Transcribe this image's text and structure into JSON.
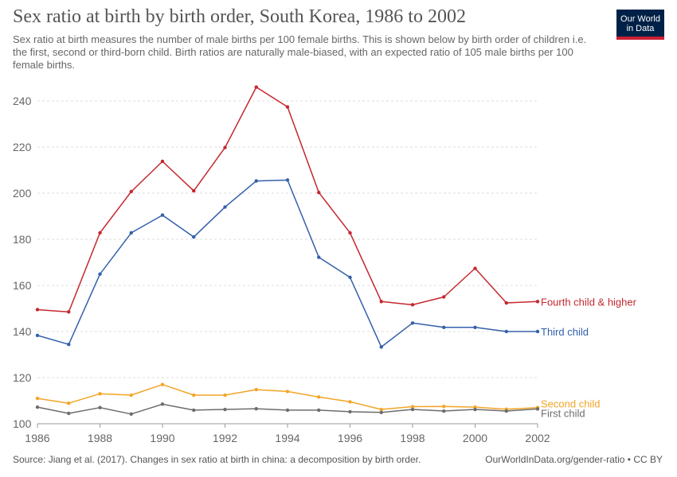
{
  "header": {
    "title": "Sex ratio at birth by birth order, South Korea, 1986 to 2002",
    "subtitle": "Sex ratio at birth measures the number of male births per 100 female births. This is shown below by birth order of children i.e. the first, second or third-born child. Birth ratios are naturally male-biased, with an expected ratio of 105 male births per 100 female births.",
    "logo_line1": "Our World",
    "logo_line2": "in Data"
  },
  "footer": {
    "source": "Source: Jiang et al. (2017). Changes in sex ratio at birth in china: a decomposition by birth order.",
    "credit": "OurWorldInData.org/gender-ratio • CC BY"
  },
  "colors": {
    "brand_bg": "#002147",
    "brand_accent": "#cc1f35",
    "grid": "#dddddd"
  },
  "chart_data": {
    "type": "line",
    "x": [
      1986,
      1987,
      1988,
      1989,
      1990,
      1991,
      1992,
      1993,
      1994,
      1995,
      1996,
      1997,
      1998,
      1999,
      2000,
      2001,
      2002
    ],
    "xticks": [
      1986,
      1988,
      1990,
      1992,
      1994,
      1996,
      1998,
      2000,
      2002
    ],
    "yticks": [
      100,
      120,
      140,
      160,
      180,
      200,
      220,
      240
    ],
    "xlim": [
      1986,
      2002
    ],
    "ylim": [
      100,
      250
    ],
    "grid": "horizontal dashed",
    "legend": "labels at line ends (right)",
    "series": [
      {
        "name": "Fourth child & higher",
        "color": "#c4272e",
        "values": [
          149.5,
          148.5,
          182.8,
          200.7,
          213.8,
          201.0,
          219.8,
          246.0,
          237.4,
          200.3,
          182.8,
          153.0,
          151.6,
          155.0,
          167.4,
          152.4,
          153.0
        ]
      },
      {
        "name": "Third child",
        "color": "#3360a9",
        "values": [
          138.3,
          134.4,
          164.9,
          182.8,
          190.5,
          181.0,
          194.0,
          205.3,
          205.7,
          172.2,
          163.5,
          133.3,
          143.7,
          141.8,
          141.8,
          140.0,
          140.0
        ]
      },
      {
        "name": "Second child",
        "color": "#f2a526",
        "values": [
          111.0,
          108.9,
          113.0,
          112.4,
          117.0,
          112.4,
          112.4,
          114.8,
          114.0,
          111.6,
          109.5,
          106.2,
          107.4,
          107.5,
          107.2,
          106.3,
          107.0
        ]
      },
      {
        "name": "First child",
        "color": "#6d6d6d",
        "values": [
          107.2,
          104.5,
          107.0,
          104.2,
          108.5,
          105.9,
          106.2,
          106.5,
          105.9,
          105.9,
          105.2,
          104.9,
          106.2,
          105.5,
          106.2,
          105.5,
          106.4
        ]
      }
    ]
  }
}
